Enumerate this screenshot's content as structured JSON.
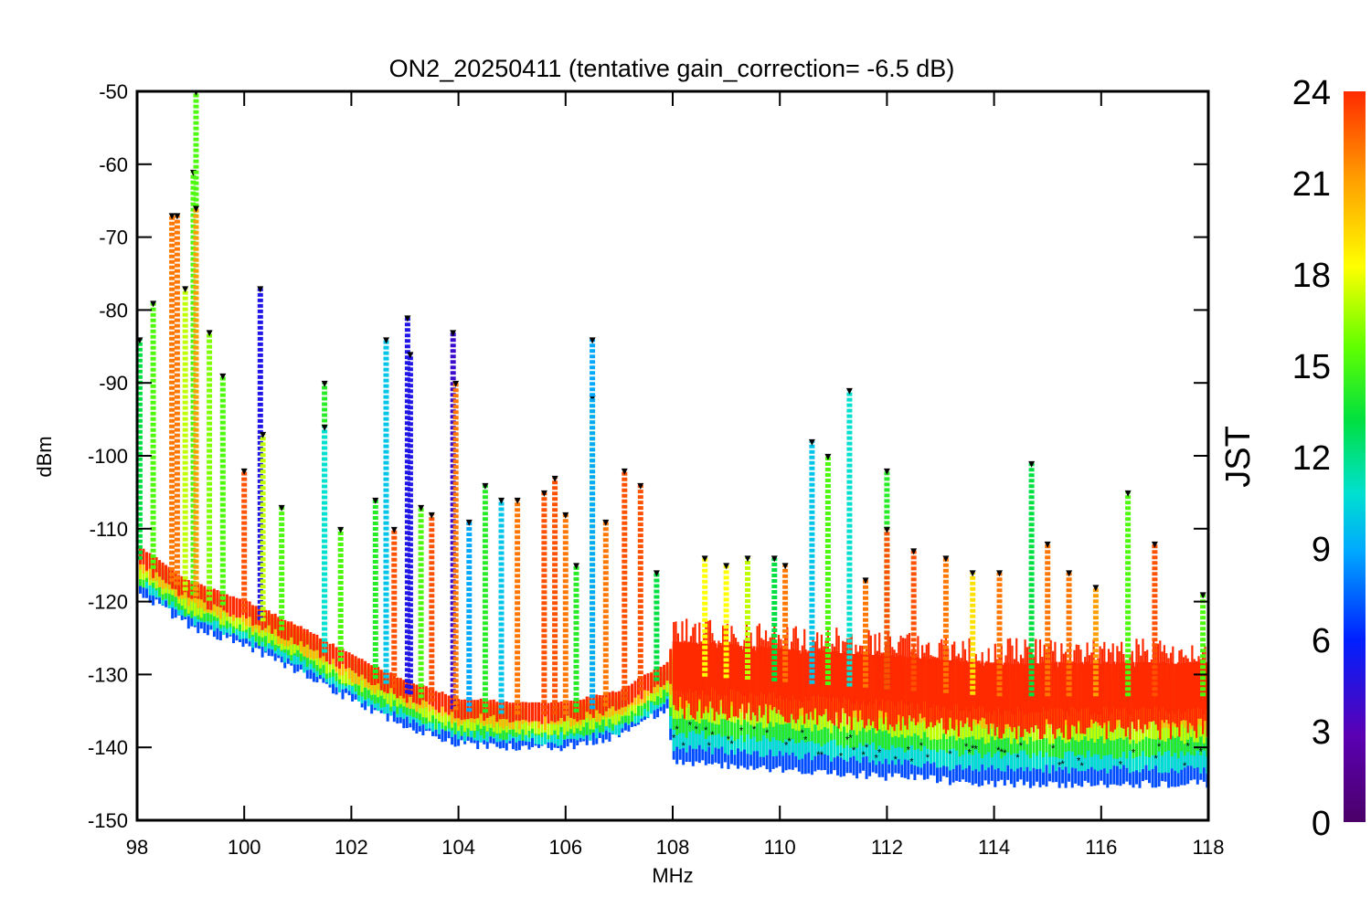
{
  "chart_data": {
    "type": "scatter",
    "title": "ON2_20250411 (tentative gain_correction= -6.5 dB)",
    "xlabel": "MHz",
    "ylabel": "dBm",
    "xlim": [
      98,
      118
    ],
    "ylim": [
      -150,
      -50
    ],
    "xticks": [
      "98",
      "100",
      "102",
      "104",
      "106",
      "108",
      "110",
      "112",
      "114",
      "116",
      "118"
    ],
    "yticks": [
      "-50",
      "-60",
      "-70",
      "-80",
      "-90",
      "-100",
      "-110",
      "-120",
      "-130",
      "-140",
      "-150"
    ],
    "colorbar": {
      "label": "JST",
      "range": [
        0,
        24
      ],
      "ticks": [
        "0",
        "3",
        "6",
        "9",
        "12",
        "15",
        "18",
        "21",
        "24"
      ],
      "colormap": "rainbow (purple-blue-cyan-green-yellow-orange-red)"
    },
    "noise_floor": {
      "x": [
        98,
        99,
        100,
        101,
        102,
        103,
        104,
        105,
        106,
        107,
        107.9,
        108.0,
        110,
        112,
        114,
        116,
        118
      ],
      "median_dBm": [
        -114,
        -119,
        -121.5,
        -125,
        -129,
        -132.5,
        -135,
        -135.5,
        -135.5,
        -134,
        -130,
        -130,
        -131,
        -132,
        -133,
        -133,
        -133
      ],
      "spread_dB": [
        3,
        3,
        3,
        3,
        3,
        3,
        3,
        3,
        3,
        3,
        3,
        8,
        8,
        8,
        8,
        8,
        8
      ],
      "description": "noise floor, red (late JST) dominant; broader spread above 108 MHz"
    },
    "peaks": [
      {
        "x": 98.05,
        "top_dBm": -84,
        "jst": 13
      },
      {
        "x": 98.3,
        "top_dBm": -79,
        "jst": 15
      },
      {
        "x": 98.65,
        "top_dBm": -67,
        "jst": 22
      },
      {
        "x": 98.75,
        "top_dBm": -67,
        "jst": 22
      },
      {
        "x": 98.9,
        "top_dBm": -77,
        "jst": 17
      },
      {
        "x": 99.05,
        "top_dBm": -61,
        "jst": 15
      },
      {
        "x": 99.1,
        "top_dBm": -50,
        "jst": 15
      },
      {
        "x": 99.1,
        "top_dBm": -66,
        "jst": 21
      },
      {
        "x": 99.35,
        "top_dBm": -83,
        "jst": 16
      },
      {
        "x": 99.6,
        "top_dBm": -89,
        "jst": 15
      },
      {
        "x": 100.0,
        "top_dBm": -102,
        "jst": 23
      },
      {
        "x": 100.3,
        "top_dBm": -77,
        "jst": 5
      },
      {
        "x": 100.35,
        "top_dBm": -97,
        "jst": 17
      },
      {
        "x": 100.7,
        "top_dBm": -107,
        "jst": 15
      },
      {
        "x": 101.5,
        "top_dBm": -90,
        "jst": 14
      },
      {
        "x": 101.5,
        "top_dBm": -96,
        "jst": 11
      },
      {
        "x": 101.8,
        "top_dBm": -110,
        "jst": 15
      },
      {
        "x": 102.45,
        "top_dBm": -106,
        "jst": 14
      },
      {
        "x": 102.65,
        "top_dBm": -84,
        "jst": 10
      },
      {
        "x": 102.8,
        "top_dBm": -110,
        "jst": 23
      },
      {
        "x": 103.05,
        "top_dBm": -81,
        "jst": 5
      },
      {
        "x": 103.1,
        "top_dBm": -86,
        "jst": 5
      },
      {
        "x": 103.3,
        "top_dBm": -107,
        "jst": 15
      },
      {
        "x": 103.5,
        "top_dBm": -108,
        "jst": 23
      },
      {
        "x": 103.9,
        "top_dBm": -83,
        "jst": 4
      },
      {
        "x": 103.95,
        "top_dBm": -90,
        "jst": 22
      },
      {
        "x": 104.2,
        "top_dBm": -109,
        "jst": 9
      },
      {
        "x": 104.5,
        "top_dBm": -104,
        "jst": 14
      },
      {
        "x": 104.8,
        "top_dBm": -106,
        "jst": 10
      },
      {
        "x": 105.1,
        "top_dBm": -106,
        "jst": 22
      },
      {
        "x": 105.6,
        "top_dBm": -105,
        "jst": 23
      },
      {
        "x": 105.8,
        "top_dBm": -103,
        "jst": 23
      },
      {
        "x": 106.0,
        "top_dBm": -108,
        "jst": 22
      },
      {
        "x": 106.2,
        "top_dBm": -115,
        "jst": 14
      },
      {
        "x": 106.5,
        "top_dBm": -92,
        "jst": 15
      },
      {
        "x": 106.5,
        "top_dBm": -84,
        "jst": 9
      },
      {
        "x": 106.75,
        "top_dBm": -109,
        "jst": 22
      },
      {
        "x": 107.1,
        "top_dBm": -102,
        "jst": 23
      },
      {
        "x": 107.4,
        "top_dBm": -104,
        "jst": 23
      },
      {
        "x": 107.7,
        "top_dBm": -116,
        "jst": 13
      },
      {
        "x": 108.6,
        "top_dBm": -114,
        "jst": 18
      },
      {
        "x": 109.0,
        "top_dBm": -115,
        "jst": 18
      },
      {
        "x": 109.4,
        "top_dBm": -114,
        "jst": 17
      },
      {
        "x": 109.9,
        "top_dBm": -114,
        "jst": 13
      },
      {
        "x": 110.1,
        "top_dBm": -115,
        "jst": 22
      },
      {
        "x": 110.6,
        "top_dBm": -98,
        "jst": 10
      },
      {
        "x": 110.9,
        "top_dBm": -100,
        "jst": 15
      },
      {
        "x": 111.3,
        "top_dBm": -91,
        "jst": 11
      },
      {
        "x": 111.6,
        "top_dBm": -117,
        "jst": 22
      },
      {
        "x": 112.0,
        "top_dBm": -102,
        "jst": 14
      },
      {
        "x": 112.0,
        "top_dBm": -110,
        "jst": 23
      },
      {
        "x": 112.5,
        "top_dBm": -113,
        "jst": 23
      },
      {
        "x": 113.1,
        "top_dBm": -114,
        "jst": 22
      },
      {
        "x": 113.6,
        "top_dBm": -116,
        "jst": 19
      },
      {
        "x": 114.1,
        "top_dBm": -116,
        "jst": 22
      },
      {
        "x": 114.7,
        "top_dBm": -101,
        "jst": 13
      },
      {
        "x": 115.0,
        "top_dBm": -112,
        "jst": 22
      },
      {
        "x": 115.4,
        "top_dBm": -116,
        "jst": 22
      },
      {
        "x": 115.9,
        "top_dBm": -118,
        "jst": 21
      },
      {
        "x": 116.5,
        "top_dBm": -105,
        "jst": 15
      },
      {
        "x": 117.0,
        "top_dBm": -112,
        "jst": 23
      },
      {
        "x": 117.9,
        "top_dBm": -119,
        "jst": 15
      }
    ]
  }
}
